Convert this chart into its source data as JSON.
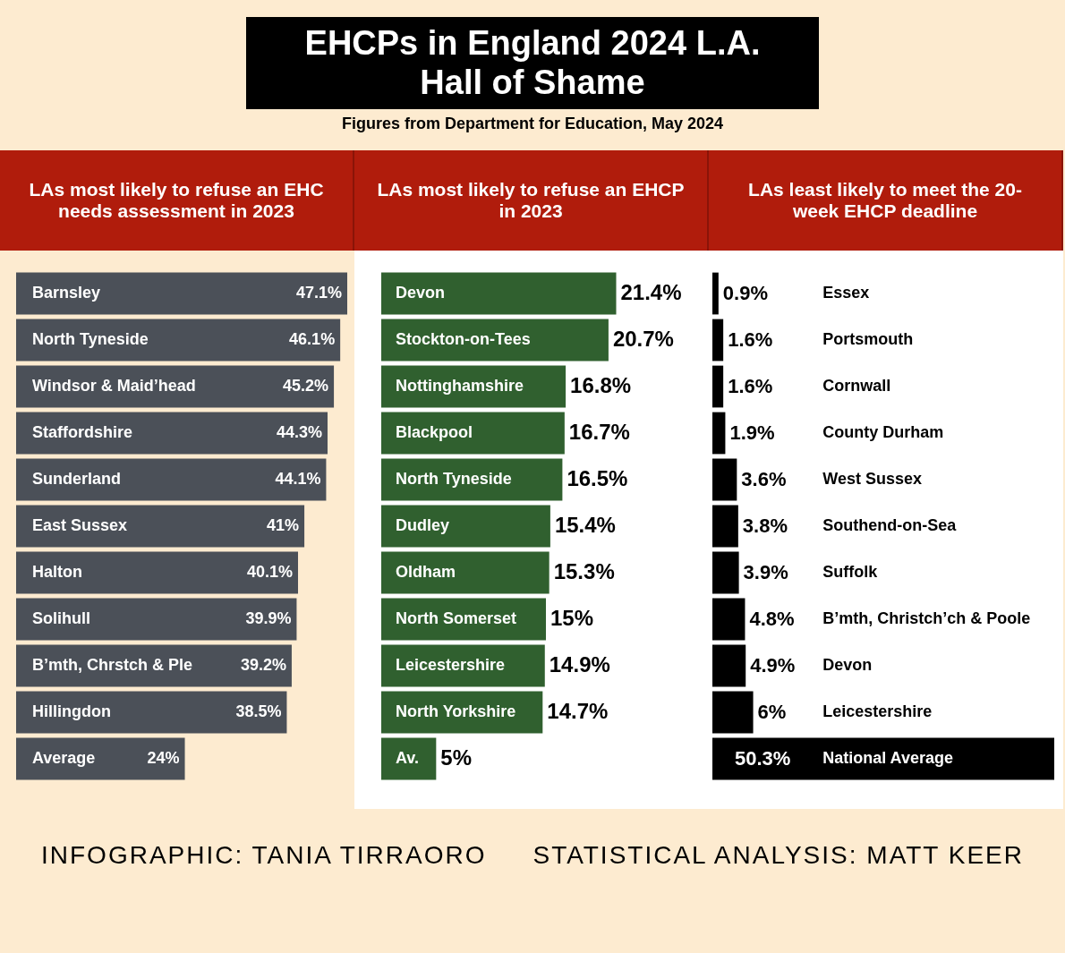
{
  "chart_data": [
    {
      "type": "other",
      "title": "EHCPs in England 2024 L.A. Hall of Shame",
      "subtitle": "Figures from Department for Education, May 2024",
      "annotations": [
        "INFOGRAPHIC: TANIA TIRRAORO",
        "STATISTICAL ANALYSIS: MATT KEER"
      ]
    },
    {
      "type": "bar",
      "orientation": "horizontal",
      "title": "LAs most likely to refuse an EHC needs assessment in 2023",
      "categories": [
        "Barnsley",
        "North Tyneside",
        "Windsor & Maid’head",
        "Staffordshire",
        "Sunderland",
        "East Sussex",
        "Halton",
        "Solihull",
        "B’mth, Chrstch & Ple",
        "Hillingdon",
        "Average"
      ],
      "values": [
        47.1,
        46.1,
        45.2,
        44.3,
        44.1,
        41,
        40.1,
        39.9,
        39.2,
        38.5,
        24
      ],
      "value_labels": [
        "47.1%",
        "46.1%",
        "45.2%",
        "44.3%",
        "44.1%",
        "41%",
        "40.1%",
        "39.9%",
        "39.2%",
        "38.5%",
        "24%"
      ],
      "colors": [
        "#4b5058",
        "#4b5058",
        "#4b5058",
        "#4b5058",
        "#4b5058",
        "#4b5058",
        "#4b5058",
        "#4b5058",
        "#4b5058",
        "#4b5058",
        "#4b5058"
      ]
    },
    {
      "type": "bar",
      "orientation": "horizontal",
      "title": "LAs most likely to refuse an EHCP in 2023",
      "categories": [
        "Devon",
        "Stockton-on-Tees",
        "Nottinghamshire",
        "Blackpool",
        "North Tyneside",
        "Dudley",
        "Oldham",
        "North Somerset",
        "Leicestershire",
        "North Yorkshire",
        "Av."
      ],
      "values": [
        21.4,
        20.7,
        16.8,
        16.7,
        16.5,
        15.4,
        15.3,
        15,
        14.9,
        14.7,
        5
      ],
      "value_labels": [
        "21.4%",
        "20.7%",
        "16.8%",
        "16.7%",
        "16.5%",
        "15.4%",
        "15.3%",
        "15%",
        "14.9%",
        "14.7%",
        "5%"
      ],
      "colors": [
        "#30602f",
        "#30602f",
        "#30602f",
        "#30602f",
        "#30602f",
        "#30602f",
        "#30602f",
        "#30602f",
        "#30602f",
        "#30602f",
        "#30602f"
      ]
    },
    {
      "type": "bar",
      "orientation": "horizontal",
      "title": "LAs least likely to meet the 20-week EHCP deadline",
      "categories": [
        "Essex",
        "Portsmouth",
        "Cornwall",
        "County Durham",
        "West Sussex",
        "Southend-on-Sea",
        "Suffolk",
        "B’mth, Christch’ch & Poole",
        "Devon",
        "Leicestershire",
        "National Average"
      ],
      "values": [
        0.9,
        1.6,
        1.6,
        1.9,
        3.6,
        3.8,
        3.9,
        4.8,
        4.9,
        6,
        50.3
      ],
      "value_labels": [
        "0.9%",
        "1.6%",
        "1.6%",
        "1.9%",
        "3.6%",
        "3.8%",
        "3.9%",
        "4.8%",
        "4.9%",
        "6%",
        "50.3%"
      ],
      "colors": [
        "#000000",
        "#000000",
        "#000000",
        "#000000",
        "#000000",
        "#000000",
        "#000000",
        "#000000",
        "#000000",
        "#000000",
        "#000000"
      ]
    }
  ]
}
